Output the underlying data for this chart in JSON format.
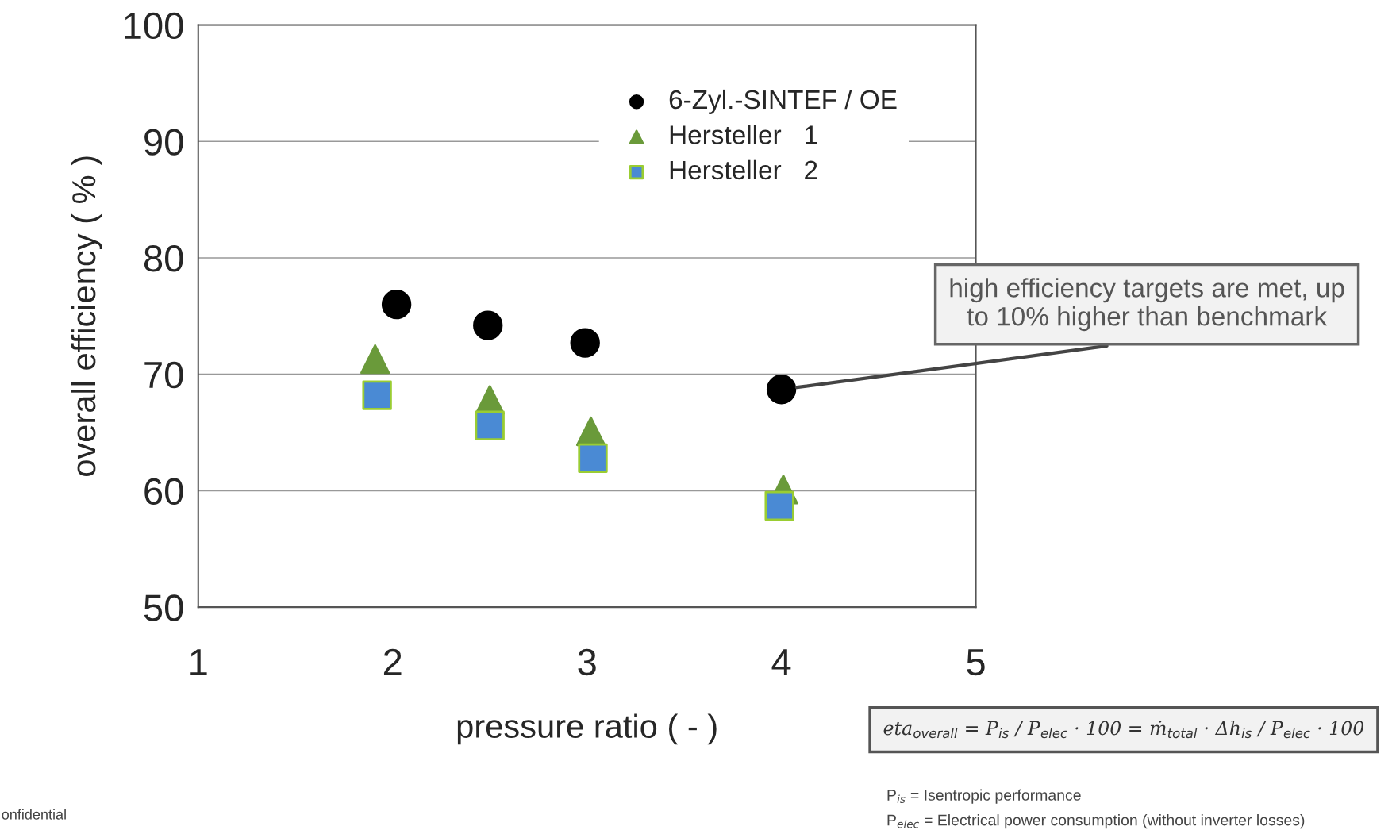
{
  "chart_data": {
    "type": "scatter",
    "xlabel": "pressure ratio ( - )",
    "ylabel": "overall efficiency ( % )",
    "xlim": [
      1,
      5
    ],
    "xticks": [
      1,
      2,
      3,
      4,
      5
    ],
    "ylim": [
      50,
      100
    ],
    "yticks": [
      50,
      60,
      70,
      80,
      90,
      100
    ],
    "grid": "y",
    "legend": "top right",
    "series": [
      {
        "name": "6-Zyl.-SINTEF / OE",
        "color": "#000000",
        "marker": "circle",
        "x": [
          2.02,
          2.49,
          2.99,
          4.0
        ],
        "values": [
          76.0,
          74.2,
          72.7,
          68.7
        ]
      },
      {
        "name": "Hersteller   1",
        "color": "#6a9a3a",
        "marker": "triangle",
        "x": [
          1.91,
          2.5,
          3.02,
          4.01
        ],
        "values": [
          71.3,
          67.8,
          65.1,
          60.1
        ]
      },
      {
        "name": "Hersteller   2",
        "color": "#4a8ad4",
        "marker": "square",
        "x": [
          1.92,
          2.5,
          3.03,
          3.99
        ],
        "values": [
          68.2,
          65.6,
          62.8,
          58.7
        ]
      }
    ],
    "annotations": [
      "high efficiency targets are met, up\nto 10% higher than benchmark",
      "eta$_{overall}$ = P$_{is}$ / P$_{elec}$ · 100 = ṁ$_{total}$ · Δh$_{is}$ / P$_{elec}$ · 100",
      "P$_{is}$ = Isentropic performance",
      "P$_{elec}$ = Electrical power consumption (without inverter losses)",
      "onfidential"
    ]
  }
}
